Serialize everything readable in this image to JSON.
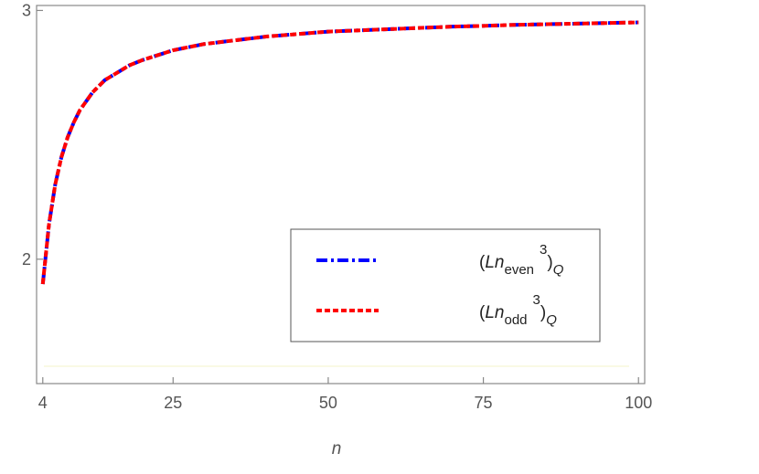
{
  "chart_data": {
    "type": "line",
    "xlabel": "n",
    "ylabel": "",
    "xlim": [
      3,
      101
    ],
    "ylim": [
      1.5,
      3.02
    ],
    "xticks": [
      "4",
      "25",
      "50",
      "75",
      "100"
    ],
    "yticks": [
      "2",
      "3"
    ],
    "grid": false,
    "legend_position": "lower-right",
    "series": [
      {
        "name": "(L_{n_even}^3)_Q",
        "legend_parts": {
          "open": "(",
          "L": "L",
          "n": "n",
          "sub": "even",
          "sup": "3",
          "close": ")",
          "q": "Q"
        },
        "color": "#0000ff",
        "style": "dash-dot",
        "x": [
          4,
          5,
          6,
          7,
          8,
          9,
          10,
          12,
          14,
          16,
          18,
          20,
          25,
          30,
          35,
          40,
          45,
          50,
          60,
          70,
          75,
          80,
          90,
          100
        ],
        "y": [
          1.9,
          2.14,
          2.3,
          2.41,
          2.49,
          2.55,
          2.6,
          2.67,
          2.72,
          2.75,
          2.78,
          2.8,
          2.84,
          2.865,
          2.88,
          2.895,
          2.905,
          2.915,
          2.925,
          2.935,
          2.938,
          2.942,
          2.947,
          2.952
        ]
      },
      {
        "name": "(L_{n_odd}^3)_Q",
        "legend_parts": {
          "open": "(",
          "L": "L",
          "n": "n",
          "sub": "odd",
          "sup": "3",
          "close": ")",
          "q": "Q"
        },
        "color": "#ff0000",
        "style": "dashed",
        "x": [
          4,
          5,
          6,
          7,
          8,
          9,
          10,
          12,
          14,
          16,
          18,
          20,
          25,
          30,
          35,
          40,
          45,
          50,
          60,
          70,
          75,
          80,
          90,
          100
        ],
        "y": [
          1.9,
          2.14,
          2.3,
          2.41,
          2.49,
          2.55,
          2.6,
          2.67,
          2.72,
          2.75,
          2.78,
          2.8,
          2.84,
          2.865,
          2.88,
          2.895,
          2.905,
          2.915,
          2.925,
          2.935,
          2.938,
          2.942,
          2.947,
          2.952
        ]
      }
    ]
  }
}
